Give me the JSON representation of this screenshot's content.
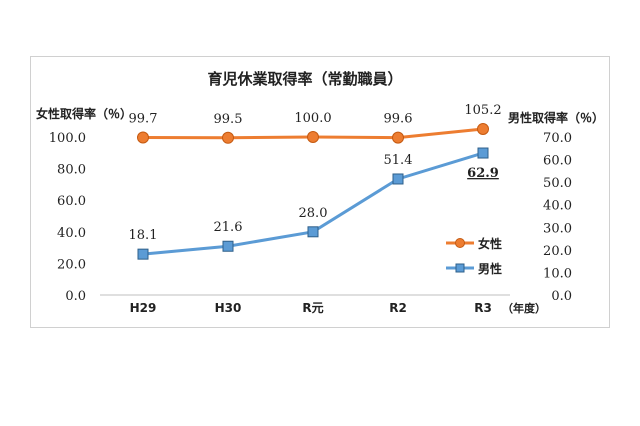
{
  "chart_data": {
    "type": "line",
    "title": "育児休業取得率（常勤職員）",
    "categories": [
      "H29",
      "H30",
      "R元",
      "R2",
      "R3"
    ],
    "x_unit": "（年度）",
    "y_left": {
      "label": "女性取得率（％）",
      "min": 0,
      "max": 100,
      "ticks": [
        "0.0",
        "20.0",
        "40.0",
        "60.0",
        "80.0",
        "100.0"
      ],
      "tick_values": [
        0,
        20,
        40,
        60,
        80,
        100
      ]
    },
    "y_right": {
      "label": "男性取得率（％）",
      "min": 0,
      "max": 80,
      "ticks": [
        "0.0",
        "10.0",
        "20.0",
        "30.0",
        "40.0",
        "50.0",
        "60.0",
        "70.0"
      ],
      "tick_values": [
        0,
        10,
        20,
        30,
        40,
        50,
        60,
        70
      ]
    },
    "series": [
      {
        "name": "女性",
        "axis": "left",
        "color": "#ed7d31",
        "marker": "circle",
        "values": [
          99.7,
          99.5,
          100.0,
          99.6,
          105.2
        ],
        "labels": [
          "99.7",
          "99.5",
          "100.0",
          "99.6",
          "105.2"
        ]
      },
      {
        "name": "男性",
        "axis": "right",
        "color": "#5b9bd5",
        "marker": "square",
        "values": [
          18.1,
          21.6,
          28.0,
          51.4,
          62.9
        ],
        "labels": [
          "18.1",
          "21.6",
          "28.0",
          "51.4",
          "62.9"
        ]
      }
    ],
    "legend": {
      "position": "right-middle"
    }
  }
}
